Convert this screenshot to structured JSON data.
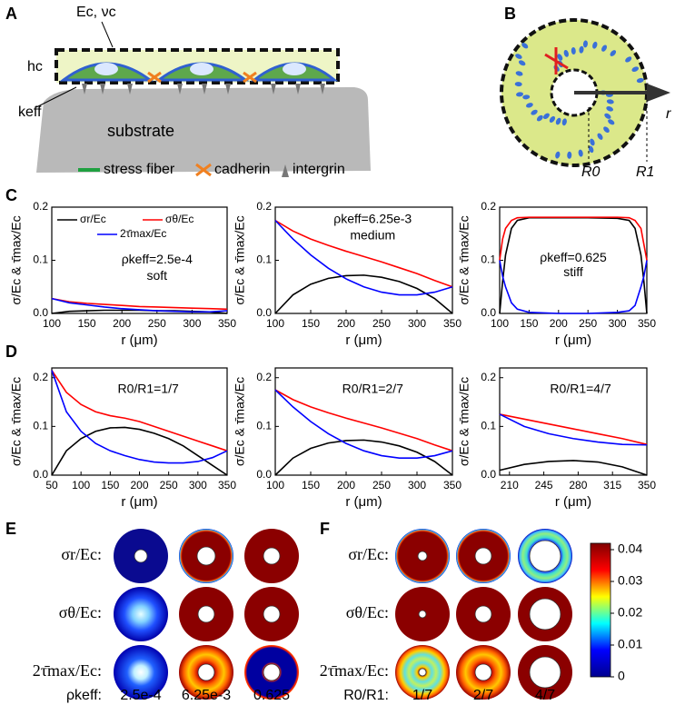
{
  "panels": {
    "A": {
      "label": "A",
      "modulus": "Ec, νc",
      "thickness": "hc",
      "stiffness": "keff",
      "substrate": "substrate",
      "legend": [
        "stress fiber",
        "cadherin",
        "intergrin"
      ]
    },
    "B": {
      "label": "B",
      "axis": "r",
      "inner": "R0",
      "outer": "R1"
    },
    "C": {
      "label": "C"
    },
    "D": {
      "label": "D"
    },
    "E": {
      "label": "E",
      "rows": [
        "σr/Ec:",
        "σθ/Ec:",
        "2τ̄max/Ec:"
      ],
      "param": "ρkeff:",
      "columns": [
        "2.5e-4",
        "6.25e-3",
        "0.625"
      ]
    },
    "F": {
      "label": "F",
      "rows": [
        "σr/Ec:",
        "σθ/Ec:",
        "2τ̄max/Ec:"
      ],
      "param": "R0/R1:",
      "columns": [
        "1/7",
        "2/7",
        "4/7"
      ]
    },
    "colorbar": {
      "ylim": [
        0,
        0.042
      ],
      "yticks": [
        0,
        0.01,
        0.02,
        0.03,
        0.04
      ],
      "colors": [
        "#00008f",
        "#0000ff",
        "#00ffff",
        "#ffff00",
        "#ff0000",
        "#800000"
      ]
    }
  },
  "chart_data": [
    {
      "type": "line",
      "xlabel": "r (μm)",
      "ylabel": "σ/Ec & τ̄max/Ec",
      "legend": "top",
      "x": [
        100,
        125,
        150,
        175,
        200,
        225,
        250,
        275,
        300,
        325,
        350
      ],
      "series": [
        {
          "name": "σr/Ec",
          "color": "#000000",
          "values": [
            0,
            0.004,
            0.005,
            0.006,
            0.006,
            0.006,
            0.005,
            0.005,
            0.004,
            0.003,
            0
          ]
        },
        {
          "name": "σθ/Ec",
          "color": "#ff0000",
          "values": [
            0.028,
            0.022,
            0.019,
            0.017,
            0.015,
            0.013,
            0.012,
            0.011,
            0.01,
            0.009,
            0.008
          ]
        },
        {
          "name": "2τ̄max/Ec",
          "color": "#0000ff",
          "values": [
            0.028,
            0.02,
            0.016,
            0.012,
            0.009,
            0.007,
            0.005,
            0.004,
            0.003,
            0.003,
            0.005
          ]
        }
      ],
      "xlim": [
        100,
        350
      ],
      "xticks": [
        100,
        150,
        200,
        250,
        300,
        350
      ],
      "ylim": [
        0,
        0.2
      ],
      "yticks": [
        {
          "value": 0,
          "label": "0.0"
        },
        0.1,
        0.2
      ],
      "annotations": [
        "ρkeff=2.5e-4",
        "soft"
      ]
    },
    {
      "type": "line",
      "xlabel": "r (μm)",
      "ylabel": "σ/Ec & τ̄max/Ec",
      "x": [
        100,
        125,
        150,
        175,
        200,
        225,
        250,
        275,
        300,
        325,
        350
      ],
      "series": [
        {
          "color": "#000000",
          "values": [
            0,
            0.035,
            0.055,
            0.066,
            0.071,
            0.072,
            0.068,
            0.06,
            0.047,
            0.028,
            0
          ]
        },
        {
          "color": "#ff0000",
          "values": [
            0.175,
            0.155,
            0.14,
            0.128,
            0.117,
            0.107,
            0.097,
            0.086,
            0.075,
            0.062,
            0.05
          ]
        },
        {
          "color": "#0000ff",
          "values": [
            0.175,
            0.14,
            0.11,
            0.085,
            0.065,
            0.05,
            0.04,
            0.035,
            0.035,
            0.04,
            0.05
          ]
        }
      ],
      "xlim": [
        100,
        350
      ],
      "xticks": [
        100,
        150,
        200,
        250,
        300,
        350
      ],
      "ylim": [
        0,
        0.2
      ],
      "yticks": [
        {
          "value": 0,
          "label": "0.0"
        },
        0.1,
        0.2
      ],
      "annotations": [
        "ρkeff=6.25e-3",
        "medium"
      ]
    },
    {
      "type": "line",
      "xlabel": "r (μm)",
      "ylabel": "σ/Ec & τ̄max/Ec",
      "x": [
        100,
        105,
        110,
        120,
        130,
        150,
        200,
        250,
        300,
        320,
        330,
        340,
        345,
        350
      ],
      "series": [
        {
          "color": "#000000",
          "values": [
            0,
            0.06,
            0.11,
            0.16,
            0.175,
            0.18,
            0.18,
            0.18,
            0.179,
            0.175,
            0.16,
            0.11,
            0.06,
            0
          ]
        },
        {
          "color": "#ff0000",
          "values": [
            0.1,
            0.14,
            0.16,
            0.175,
            0.18,
            0.181,
            0.181,
            0.181,
            0.181,
            0.18,
            0.175,
            0.16,
            0.13,
            0.1
          ]
        },
        {
          "color": "#0000ff",
          "values": [
            0.1,
            0.07,
            0.05,
            0.02,
            0.008,
            0.002,
            0,
            0,
            0.002,
            0.005,
            0.015,
            0.05,
            0.07,
            0.1
          ]
        }
      ],
      "xlim": [
        100,
        350
      ],
      "xticks": [
        100,
        150,
        200,
        250,
        300,
        350
      ],
      "ylim": [
        0,
        0.2
      ],
      "yticks": [
        {
          "value": 0,
          "label": "0.0"
        },
        0.1,
        0.2
      ],
      "annotations": [
        "ρkeff=0.625",
        "stiff"
      ]
    },
    {
      "type": "line",
      "xlabel": "r (μm)",
      "ylabel": "σ/Ec & τ̄max/Ec",
      "x": [
        50,
        75,
        100,
        125,
        150,
        175,
        200,
        225,
        250,
        275,
        300,
        325,
        350
      ],
      "series": [
        {
          "color": "#000000",
          "values": [
            0,
            0.05,
            0.075,
            0.09,
            0.097,
            0.098,
            0.094,
            0.086,
            0.075,
            0.06,
            0.04,
            0.02,
            0
          ]
        },
        {
          "color": "#ff0000",
          "values": [
            0.215,
            0.17,
            0.145,
            0.13,
            0.122,
            0.117,
            0.11,
            0.1,
            0.09,
            0.08,
            0.07,
            0.06,
            0.05
          ]
        },
        {
          "color": "#0000ff",
          "values": [
            0.215,
            0.13,
            0.09,
            0.065,
            0.05,
            0.04,
            0.032,
            0.027,
            0.025,
            0.025,
            0.028,
            0.036,
            0.05
          ]
        }
      ],
      "xlim": [
        50,
        350
      ],
      "xticks": [
        50,
        100,
        150,
        200,
        250,
        300,
        350
      ],
      "ylim": [
        0,
        0.22
      ],
      "yticks": [
        {
          "value": 0,
          "label": "0.0"
        },
        0.1,
        0.2
      ],
      "annotations": [
        "R0/R1=1/7"
      ]
    },
    {
      "type": "line",
      "xlabel": "r (μm)",
      "ylabel": "σ/Ec & τ̄max/Ec",
      "x": [
        100,
        125,
        150,
        175,
        200,
        225,
        250,
        275,
        300,
        325,
        350
      ],
      "series": [
        {
          "color": "#000000",
          "values": [
            0,
            0.035,
            0.055,
            0.066,
            0.071,
            0.072,
            0.068,
            0.06,
            0.047,
            0.028,
            0
          ]
        },
        {
          "color": "#ff0000",
          "values": [
            0.175,
            0.155,
            0.14,
            0.128,
            0.117,
            0.107,
            0.097,
            0.086,
            0.075,
            0.062,
            0.05
          ]
        },
        {
          "color": "#0000ff",
          "values": [
            0.175,
            0.14,
            0.11,
            0.085,
            0.065,
            0.05,
            0.04,
            0.035,
            0.035,
            0.04,
            0.05
          ]
        }
      ],
      "xlim": [
        100,
        350
      ],
      "xticks": [
        100,
        150,
        200,
        250,
        300,
        350
      ],
      "ylim": [
        0,
        0.22
      ],
      "yticks": [
        {
          "value": 0,
          "label": "0.0"
        },
        0.1,
        0.2
      ],
      "annotations": [
        "R0/R1=2/7"
      ]
    },
    {
      "type": "line",
      "xlabel": "r (μm)",
      "ylabel": "σ/Ec & τ̄max/Ec",
      "x": [
        200,
        225,
        250,
        275,
        300,
        325,
        350
      ],
      "series": [
        {
          "color": "#000000",
          "values": [
            0.01,
            0.022,
            0.028,
            0.03,
            0.027,
            0.017,
            0
          ]
        },
        {
          "color": "#ff0000",
          "values": [
            0.125,
            0.115,
            0.105,
            0.095,
            0.085,
            0.075,
            0.063
          ]
        },
        {
          "color": "#0000ff",
          "values": [
            0.125,
            0.1,
            0.085,
            0.075,
            0.068,
            0.063,
            0.062
          ]
        }
      ],
      "xlim": [
        200,
        350
      ],
      "xticks": [
        210,
        245,
        280,
        315,
        350
      ],
      "ylim": [
        0,
        0.22
      ],
      "yticks": [
        {
          "value": 0,
          "label": "0.0"
        },
        0.1,
        0.2
      ],
      "annotations": [
        "R0/R1=4/7"
      ]
    }
  ]
}
